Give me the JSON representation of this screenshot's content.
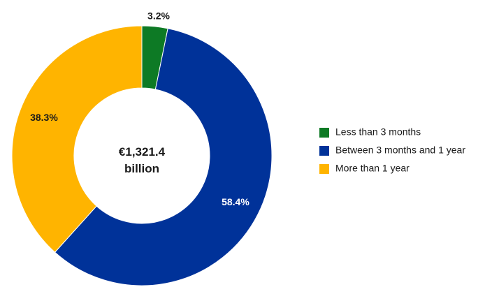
{
  "chart_data": {
    "type": "pie",
    "subtype": "donut",
    "center_label": {
      "line1": "€1,321.4",
      "line2": "billion"
    },
    "categories": [
      "Less than 3 months",
      "Between 3 months and 1 year",
      "More than 1 year"
    ],
    "values": [
      3.2,
      58.4,
      38.3
    ],
    "value_labels": [
      "3.2%",
      "58.4%",
      "38.3%"
    ],
    "colors": [
      "#0d7a25",
      "#003299",
      "#ffb400"
    ],
    "label_colors": [
      "#1a1a1a",
      "#ffffff",
      "#1a1a1a"
    ],
    "legend_position": "right",
    "start_angle": "12 o'clock",
    "direction": "clockwise"
  }
}
